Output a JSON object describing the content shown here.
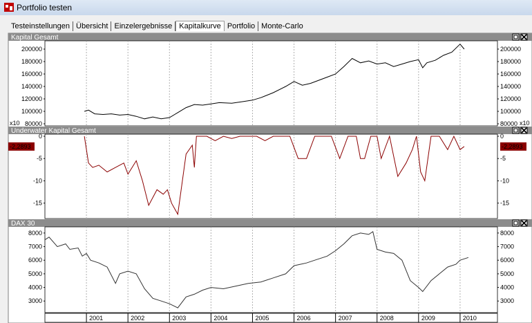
{
  "window": {
    "title": "Portfolio testen"
  },
  "tabs": [
    {
      "label": "Testeinstellungen"
    },
    {
      "label": "Übersicht"
    },
    {
      "label": "Einzelergebnisse"
    },
    {
      "label": "Kapitalkurve",
      "active": true
    },
    {
      "label": "Portfolio"
    },
    {
      "label": "Monte-Carlo"
    }
  ],
  "panel_icons": [
    "maximize-icon",
    "close-icon"
  ],
  "x_axis_years": [
    "2001",
    "2002",
    "2003",
    "2004",
    "2005",
    "2006",
    "2007",
    "2008",
    "2009",
    "2010"
  ],
  "chart_data": [
    {
      "type": "line",
      "title": "Kapital Gesamt",
      "multiplier_label": "x10",
      "yticks": [
        "200000",
        "180000",
        "160000",
        "140000",
        "120000",
        "100000",
        "80000"
      ],
      "ylim": [
        80000,
        210000
      ],
      "color": "#000000",
      "x": [
        2000.95,
        2001.05,
        2001.2,
        2001.4,
        2001.6,
        2001.8,
        2002.0,
        2002.2,
        2002.4,
        2002.6,
        2002.8,
        2003.0,
        2003.2,
        2003.4,
        2003.6,
        2003.8,
        2004.0,
        2004.2,
        2004.5,
        2004.8,
        2005.0,
        2005.2,
        2005.5,
        2005.8,
        2006.0,
        2006.2,
        2006.4,
        2006.6,
        2006.8,
        2007.0,
        2007.2,
        2007.4,
        2007.6,
        2007.8,
        2008.0,
        2008.2,
        2008.4,
        2008.6,
        2008.8,
        2009.0,
        2009.1,
        2009.2,
        2009.4,
        2009.6,
        2009.8,
        2010.0,
        2010.1
      ],
      "y": [
        100000,
        102000,
        96000,
        95000,
        96000,
        94000,
        95000,
        92000,
        88000,
        91000,
        88000,
        90000,
        98000,
        106000,
        111000,
        110000,
        112000,
        114000,
        113000,
        116000,
        118000,
        122000,
        130000,
        140000,
        148000,
        142000,
        145000,
        150000,
        155000,
        160000,
        172000,
        185000,
        178000,
        181000,
        176000,
        178000,
        172000,
        176000,
        180000,
        183000,
        170000,
        178000,
        182000,
        190000,
        195000,
        208000,
        200000
      ]
    },
    {
      "type": "line",
      "title": "Underwater Kapital Gesamt",
      "current_value": "-2,2893",
      "yticks": [
        "0",
        "-5",
        "-10",
        "-15"
      ],
      "ylim": [
        -18,
        0
      ],
      "color": "#8b0000",
      "x": [
        2000.95,
        2001.05,
        2001.15,
        2001.3,
        2001.5,
        2001.7,
        2001.9,
        2002.0,
        2002.1,
        2002.2,
        2002.35,
        2002.5,
        2002.7,
        2002.85,
        2002.95,
        2003.05,
        2003.2,
        2003.4,
        2003.55,
        2003.6,
        2003.65,
        2003.9,
        2004.1,
        2004.3,
        2004.5,
        2004.7,
        2004.9,
        2005.1,
        2005.3,
        2005.5,
        2005.7,
        2005.9,
        2006.1,
        2006.3,
        2006.5,
        2006.7,
        2006.9,
        2007.1,
        2007.3,
        2007.5,
        2007.6,
        2007.7,
        2007.85,
        2008.0,
        2008.1,
        2008.3,
        2008.5,
        2008.7,
        2008.85,
        2008.95,
        2009.05,
        2009.15,
        2009.3,
        2009.5,
        2009.7,
        2009.85,
        2010.0,
        2010.1
      ],
      "y": [
        0,
        -6,
        -7,
        -6.5,
        -8,
        -7,
        -6,
        -8.5,
        -7,
        -5.5,
        -10,
        -15.5,
        -12,
        -13,
        -12,
        -15,
        -17.5,
        -4,
        -2,
        -7,
        0,
        0,
        -1,
        0,
        -0.5,
        0,
        0,
        0,
        -1,
        0,
        0,
        0,
        -5,
        -5,
        0,
        0,
        0,
        -5,
        0,
        0,
        -5,
        -5,
        0,
        0,
        -5,
        0,
        -9,
        -6,
        -3,
        0,
        -8,
        -10,
        0,
        0,
        -3,
        0,
        -3,
        -2.3
      ]
    },
    {
      "type": "line",
      "title": "DAX 30",
      "yticks": [
        "8000",
        "7000",
        "6000",
        "5000",
        "4000",
        "3000"
      ],
      "ylim": [
        2300,
        8300
      ],
      "color": "#333333",
      "x": [
        2000.0,
        2000.1,
        2000.3,
        2000.5,
        2000.6,
        2000.8,
        2000.9,
        2001.0,
        2001.1,
        2001.3,
        2001.5,
        2001.7,
        2001.8,
        2002.0,
        2002.2,
        2002.4,
        2002.6,
        2002.8,
        2003.0,
        2003.2,
        2003.4,
        2003.6,
        2003.8,
        2004.0,
        2004.3,
        2004.6,
        2004.9,
        2005.2,
        2005.5,
        2005.8,
        2006.0,
        2006.3,
        2006.5,
        2006.8,
        2007.0,
        2007.2,
        2007.4,
        2007.6,
        2007.8,
        2007.9,
        2008.0,
        2008.2,
        2008.4,
        2008.6,
        2008.8,
        2009.0,
        2009.1,
        2009.3,
        2009.5,
        2009.7,
        2009.9,
        2010.0,
        2010.2
      ],
      "y": [
        7500,
        7700,
        7000,
        7200,
        6800,
        6900,
        6300,
        6500,
        6000,
        5800,
        5500,
        4300,
        5000,
        5200,
        5000,
        3900,
        3200,
        3000,
        2800,
        2500,
        3300,
        3500,
        3800,
        4000,
        3900,
        4100,
        4300,
        4400,
        4700,
        5000,
        5600,
        5800,
        6000,
        6300,
        6700,
        7200,
        7800,
        8000,
        7900,
        8100,
        6800,
        6600,
        6500,
        6000,
        4500,
        4000,
        3700,
        4500,
        5000,
        5500,
        5700,
        6000,
        6200
      ]
    }
  ]
}
